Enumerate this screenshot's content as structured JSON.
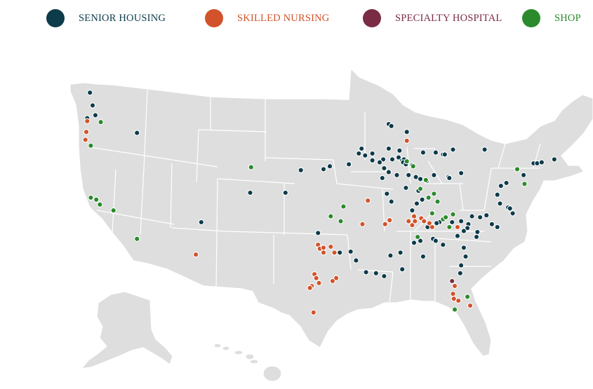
{
  "legend": [
    {
      "key": "senior_housing",
      "label": "SENIOR HOUSING",
      "color": "#0e3b4a"
    },
    {
      "key": "skilled_nursing",
      "label": "SKILLED NURSING",
      "color": "#d2532b"
    },
    {
      "key": "specialty_hospital",
      "label": "SPECIALTY HOSPITAL",
      "color": "#7a2c45"
    },
    {
      "key": "shop",
      "label": "SHOP",
      "color": "#2b8a2b"
    }
  ],
  "map": {
    "region": "Contiguous United States, Alaska and Hawaii (insets)",
    "base_color": "#dedede",
    "locations": {
      "senior_housing": [
        {
          "lon": -122.6,
          "lat": 48.7
        },
        {
          "lon": -122.3,
          "lat": 47.4
        },
        {
          "lon": -122.0,
          "lat": 46.4
        },
        {
          "lon": -122.9,
          "lat": 46.1
        },
        {
          "lon": -117.4,
          "lat": 44.6
        },
        {
          "lon": -89.6,
          "lat": 45.5
        },
        {
          "lon": -89.3,
          "lat": 45.3
        },
        {
          "lon": -87.6,
          "lat": 44.7
        },
        {
          "lon": -92.6,
          "lat": 43.0
        },
        {
          "lon": -92.9,
          "lat": 42.5
        },
        {
          "lon": -92.2,
          "lat": 42.3
        },
        {
          "lon": -91.4,
          "lat": 42.5
        },
        {
          "lon": -89.6,
          "lat": 43.0
        },
        {
          "lon": -88.4,
          "lat": 42.8
        },
        {
          "lon": -88.5,
          "lat": 42.1
        },
        {
          "lon": -89.2,
          "lat": 41.9
        },
        {
          "lon": -88.1,
          "lat": 41.8
        },
        {
          "lon": -87.9,
          "lat": 41.9
        },
        {
          "lon": -88.0,
          "lat": 41.6
        },
        {
          "lon": -87.7,
          "lat": 41.4
        },
        {
          "lon": -87.0,
          "lat": 41.3
        },
        {
          "lon": -90.2,
          "lat": 41.9
        },
        {
          "lon": -90.6,
          "lat": 41.6
        },
        {
          "lon": -91.4,
          "lat": 41.8
        },
        {
          "lon": -94.0,
          "lat": 41.4
        },
        {
          "lon": -96.1,
          "lat": 41.2
        },
        {
          "lon": -96.8,
          "lat": 40.9
        },
        {
          "lon": -99.3,
          "lat": 40.8
        },
        {
          "lon": -90.1,
          "lat": 41.0
        },
        {
          "lon": -89.6,
          "lat": 40.6
        },
        {
          "lon": -88.7,
          "lat": 40.3
        },
        {
          "lon": -90.3,
          "lat": 40.0
        },
        {
          "lon": -87.4,
          "lat": 40.3
        },
        {
          "lon": -86.6,
          "lat": 40.1
        },
        {
          "lon": -86.1,
          "lat": 39.9
        },
        {
          "lon": -85.4,
          "lat": 39.7
        },
        {
          "lon": -84.6,
          "lat": 40.3
        },
        {
          "lon": -83.0,
          "lat": 40.1
        },
        {
          "lon": -82.9,
          "lat": 40.0
        },
        {
          "lon": -81.6,
          "lat": 40.5
        },
        {
          "lon": -84.4,
          "lat": 42.6
        },
        {
          "lon": -83.6,
          "lat": 42.4
        },
        {
          "lon": -83.4,
          "lat": 42.4
        },
        {
          "lon": -85.8,
          "lat": 42.6
        },
        {
          "lon": -82.5,
          "lat": 42.9
        },
        {
          "lon": -79.0,
          "lat": 42.9
        },
        {
          "lon": -73.6,
          "lat": 41.5
        },
        {
          "lon": -73.2,
          "lat": 41.5
        },
        {
          "lon": -72.7,
          "lat": 41.6
        },
        {
          "lon": -71.3,
          "lat": 41.9
        },
        {
          "lon": -74.7,
          "lat": 40.3
        },
        {
          "lon": -76.6,
          "lat": 39.5
        },
        {
          "lon": -77.2,
          "lat": 39.2
        },
        {
          "lon": -77.6,
          "lat": 38.3
        },
        {
          "lon": -77.3,
          "lat": 37.4
        },
        {
          "lon": -76.4,
          "lat": 37.0
        },
        {
          "lon": -76.2,
          "lat": 36.9
        },
        {
          "lon": -75.9,
          "lat": 36.4
        },
        {
          "lon": -78.8,
          "lat": 36.2
        },
        {
          "lon": -79.5,
          "lat": 36.0
        },
        {
          "lon": -80.4,
          "lat": 36.1
        },
        {
          "lon": -80.8,
          "lat": 35.3
        },
        {
          "lon": -81.6,
          "lat": 35.6
        },
        {
          "lon": -82.6,
          "lat": 35.5
        },
        {
          "lon": -84.0,
          "lat": 35.5
        },
        {
          "lon": -84.3,
          "lat": 35.4
        },
        {
          "lon": -84.9,
          "lat": 35.1
        },
        {
          "lon": -85.3,
          "lat": 35.0
        },
        {
          "lon": -78.2,
          "lat": 35.3
        },
        {
          "lon": -77.6,
          "lat": 35.0
        },
        {
          "lon": -79.8,
          "lat": 34.5
        },
        {
          "lon": -79.9,
          "lat": 34.0
        },
        {
          "lon": -80.9,
          "lat": 34.9
        },
        {
          "lon": -81.3,
          "lat": 34.6
        },
        {
          "lon": -82.0,
          "lat": 34.1
        },
        {
          "lon": -81.3,
          "lat": 32.9
        },
        {
          "lon": -81.1,
          "lat": 32.0
        },
        {
          "lon": -81.6,
          "lat": 31.1
        },
        {
          "lon": -81.7,
          "lat": 30.3
        },
        {
          "lon": -84.7,
          "lat": 33.8
        },
        {
          "lon": -84.4,
          "lat": 33.6
        },
        {
          "lon": -83.6,
          "lat": 33.2
        },
        {
          "lon": -86.1,
          "lat": 33.6
        },
        {
          "lon": -86.8,
          "lat": 33.4
        },
        {
          "lon": -88.3,
          "lat": 32.4
        },
        {
          "lon": -89.4,
          "lat": 32.1
        },
        {
          "lon": -85.9,
          "lat": 37.8
        },
        {
          "lon": -87.0,
          "lat": 36.7
        },
        {
          "lon": -86.3,
          "lat": 38.7
        },
        {
          "lon": -86.5,
          "lat": 37.4
        },
        {
          "lon": -89.3,
          "lat": 37.6
        },
        {
          "lon": -89.8,
          "lat": 38.4
        },
        {
          "lon": -87.7,
          "lat": 39.0
        },
        {
          "lon": -88.1,
          "lat": 30.7
        },
        {
          "lon": -90.1,
          "lat": 30.0
        },
        {
          "lon": -91.0,
          "lat": 30.3
        },
        {
          "lon": -92.1,
          "lat": 30.4
        },
        {
          "lon": -93.8,
          "lat": 32.5
        },
        {
          "lon": -93.2,
          "lat": 31.6
        },
        {
          "lon": -97.4,
          "lat": 34.4
        },
        {
          "lon": -95.0,
          "lat": 32.4
        },
        {
          "lon": -85.8,
          "lat": 32.0
        },
        {
          "lon": -104.9,
          "lat": 38.5
        },
        {
          "lon": -101.0,
          "lat": 38.5
        },
        {
          "lon": -110.3,
          "lat": 35.5
        }
      ],
      "skilled_nursing": [
        {
          "lon": -122.9,
          "lat": 45.8
        },
        {
          "lon": -123.0,
          "lat": 44.7
        },
        {
          "lon": -123.1,
          "lat": 43.9
        },
        {
          "lon": -87.6,
          "lat": 43.8
        },
        {
          "lon": -91.9,
          "lat": 37.7
        },
        {
          "lon": -92.5,
          "lat": 35.3
        },
        {
          "lon": -90.0,
          "lat": 35.3
        },
        {
          "lon": -89.5,
          "lat": 35.7
        },
        {
          "lon": -87.4,
          "lat": 35.6
        },
        {
          "lon": -87.0,
          "lat": 35.2
        },
        {
          "lon": -86.7,
          "lat": 35.6
        },
        {
          "lon": -86.0,
          "lat": 35.9
        },
        {
          "lon": -85.7,
          "lat": 35.6
        },
        {
          "lon": -85.1,
          "lat": 35.4
        },
        {
          "lon": -84.8,
          "lat": 35.0
        },
        {
          "lon": -86.8,
          "lat": 36.1
        },
        {
          "lon": -82.0,
          "lat": 35.0
        },
        {
          "lon": -97.4,
          "lat": 33.2
        },
        {
          "lon": -97.2,
          "lat": 32.8
        },
        {
          "lon": -96.8,
          "lat": 32.9
        },
        {
          "lon": -96.0,
          "lat": 33.0
        },
        {
          "lon": -96.8,
          "lat": 32.4
        },
        {
          "lon": -95.6,
          "lat": 32.4
        },
        {
          "lon": -97.8,
          "lat": 30.2
        },
        {
          "lon": -97.6,
          "lat": 29.8
        },
        {
          "lon": -97.3,
          "lat": 29.3
        },
        {
          "lon": -98.1,
          "lat": 29.0
        },
        {
          "lon": -98.3,
          "lat": 28.8
        },
        {
          "lon": -95.4,
          "lat": 29.8
        },
        {
          "lon": -95.8,
          "lat": 29.5
        },
        {
          "lon": -97.9,
          "lat": 26.3
        },
        {
          "lon": -110.9,
          "lat": 32.2
        },
        {
          "lon": -82.3,
          "lat": 29.0
        },
        {
          "lon": -82.5,
          "lat": 28.2
        },
        {
          "lon": -82.4,
          "lat": 27.7
        },
        {
          "lon": -81.9,
          "lat": 27.5
        },
        {
          "lon": -80.6,
          "lat": 27.0
        }
      ],
      "specialty_hospital": [
        {
          "lon": -82.6,
          "lat": 29.5
        }
      ],
      "shop": [
        {
          "lon": -121.4,
          "lat": 45.7
        },
        {
          "lon": -122.5,
          "lat": 43.3
        },
        {
          "lon": -104.8,
          "lat": 41.1
        },
        {
          "lon": -122.5,
          "lat": 38.0
        },
        {
          "lon": -121.9,
          "lat": 37.8
        },
        {
          "lon": -121.5,
          "lat": 37.3
        },
        {
          "lon": -120.0,
          "lat": 36.7
        },
        {
          "lon": -117.4,
          "lat": 33.8
        },
        {
          "lon": -94.6,
          "lat": 37.1
        },
        {
          "lon": -96.0,
          "lat": 36.1
        },
        {
          "lon": -94.9,
          "lat": 35.6
        },
        {
          "lon": -87.6,
          "lat": 41.7
        },
        {
          "lon": -86.9,
          "lat": 41.2
        },
        {
          "lon": -85.5,
          "lat": 39.8
        },
        {
          "lon": -86.1,
          "lat": 38.9
        },
        {
          "lon": -84.6,
          "lat": 38.4
        },
        {
          "lon": -85.2,
          "lat": 38.0
        },
        {
          "lon": -84.2,
          "lat": 37.6
        },
        {
          "lon": -84.8,
          "lat": 36.4
        },
        {
          "lon": -83.6,
          "lat": 35.8
        },
        {
          "lon": -83.3,
          "lat": 36.0
        },
        {
          "lon": -82.5,
          "lat": 36.3
        },
        {
          "lon": -82.9,
          "lat": 35.0
        },
        {
          "lon": -75.4,
          "lat": 40.9
        },
        {
          "lon": -74.6,
          "lat": 39.4
        },
        {
          "lon": -86.4,
          "lat": 34.0
        },
        {
          "lon": -82.3,
          "lat": 26.6
        },
        {
          "lon": -80.9,
          "lat": 27.9
        }
      ]
    }
  }
}
